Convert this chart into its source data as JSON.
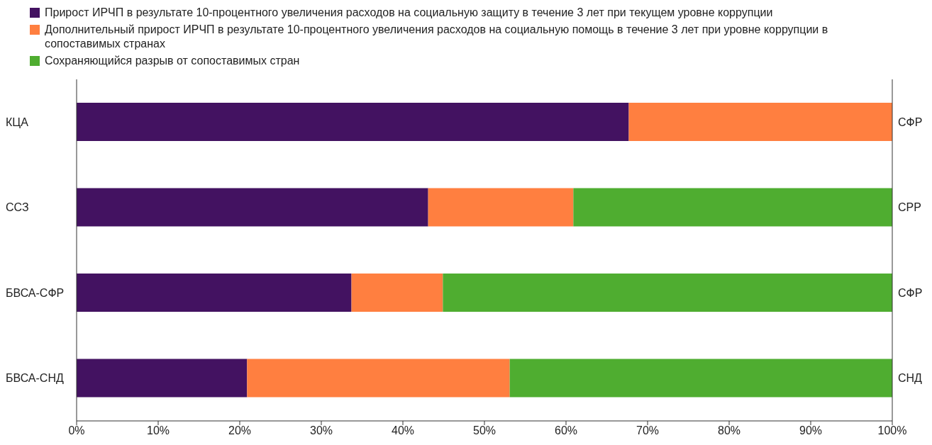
{
  "chart_data": {
    "type": "bar",
    "orientation": "horizontal",
    "stacked": true,
    "categories": [
      "КЦА",
      "ССЗ",
      "БВСА-СФР",
      "БВСА-СНД"
    ],
    "y2_categories": [
      "СФР",
      "СРР",
      "СФР",
      "СНД"
    ],
    "series": [
      {
        "name": "Прирост ИРЧП в результате 10-процентного увеличения расходов на социальную защиту в течение 3 лет при текущем уровне коррупции",
        "color": "#431261",
        "values": [
          67.7,
          43.1,
          33.7,
          20.9
        ]
      },
      {
        "name": "Дополнительный прирост ИРЧП в результате 10-процентного увеличения расходов на социальную помощь в течение 3 лет при уровне коррупции в сопоставимых странах",
        "color": "#ff7f40",
        "values": [
          32.3,
          17.8,
          11.2,
          32.2
        ]
      },
      {
        "name": "Сохраняющийся разрыв от сопоставимых стран",
        "color": "#4fad30",
        "values": [
          0,
          39.1,
          55.1,
          46.9
        ]
      }
    ],
    "xlim": [
      0,
      100
    ],
    "xticks": [
      {
        "value": 0,
        "label": "0%"
      },
      {
        "value": 10,
        "label": "10%"
      },
      {
        "value": 20,
        "label": "20%"
      },
      {
        "value": 30,
        "label": "30%"
      },
      {
        "value": 40,
        "label": "40%"
      },
      {
        "value": 50,
        "label": "50%"
      },
      {
        "value": 60,
        "label": "60%"
      },
      {
        "value": 70,
        "label": "70%"
      },
      {
        "value": 80,
        "label": "80%"
      },
      {
        "value": 90,
        "label": "90%"
      },
      {
        "value": 100,
        "label": "100%"
      }
    ],
    "grid": false,
    "legend": "top"
  }
}
